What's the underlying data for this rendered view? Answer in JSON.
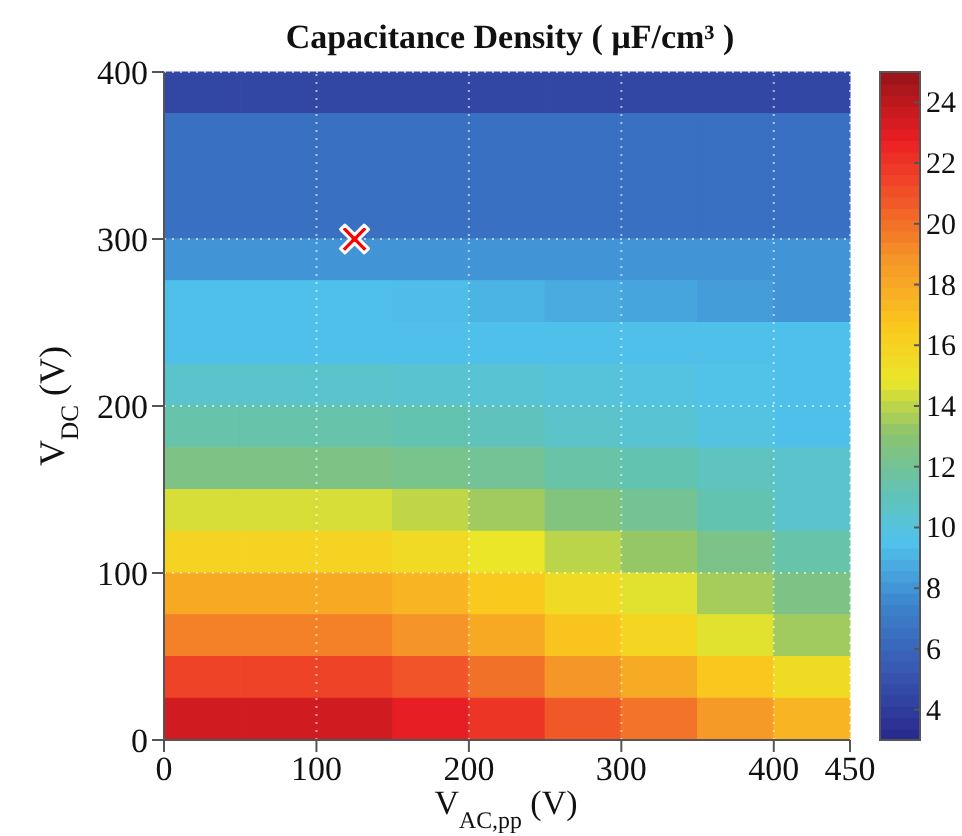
{
  "chart_data": {
    "type": "heatmap",
    "title": "Capacitance Density ( μF/cm³ )",
    "xlabel": "V$_{AC,pp}$ (V)",
    "ylabel": "V$_{DC}$ (V)",
    "x": [
      25,
      75,
      125,
      175,
      225,
      275,
      325,
      375,
      425
    ],
    "y": [
      387.5,
      362.5,
      337.5,
      312.5,
      287.5,
      262.5,
      237.5,
      212.5,
      187.5,
      162.5,
      137.5,
      112.5,
      87.5,
      62.5,
      37.5,
      12.5
    ],
    "xlim": [
      0,
      450
    ],
    "xticks": [
      0,
      100,
      200,
      300,
      400,
      450
    ],
    "ylim": [
      0,
      400
    ],
    "yticks": [
      0,
      100,
      200,
      300,
      400
    ],
    "clim": [
      3,
      25
    ],
    "cticks": [
      4,
      6,
      8,
      10,
      12,
      14,
      16,
      18,
      20,
      22,
      24
    ],
    "grid": true,
    "cells": [
      [
        4.5,
        4.5,
        4.5,
        4.5,
        4.5,
        4.5,
        4.5,
        4.5,
        4.5
      ],
      [
        6.5,
        6.5,
        6.5,
        6.5,
        6.5,
        6.5,
        6.5,
        6.5,
        6.5
      ],
      [
        6.5,
        6.5,
        6.5,
        6.5,
        6.5,
        6.5,
        6.5,
        6.5,
        6.5
      ],
      [
        6.5,
        6.5,
        6.5,
        6.5,
        6.5,
        6.5,
        6.5,
        6.5,
        6.5
      ],
      [
        8,
        8,
        8,
        8,
        8,
        8,
        8,
        8,
        8
      ],
      [
        9.5,
        9.5,
        9.5,
        9.4,
        9.1,
        8.8,
        8.6,
        8.3,
        8
      ],
      [
        9.5,
        9.5,
        9.5,
        9.5,
        9.5,
        9.5,
        9.5,
        9.5,
        9.5
      ],
      [
        10.5,
        10.5,
        10.5,
        10.4,
        10.3,
        10.1,
        9.9,
        9.7,
        9.5
      ],
      [
        11.5,
        11.5,
        11.5,
        11.3,
        11,
        10.6,
        10.3,
        9.9,
        9.5
      ],
      [
        12.5,
        12.5,
        12.5,
        12.3,
        12,
        11.6,
        11.3,
        10.9,
        10.5
      ],
      [
        14.5,
        14.5,
        14.5,
        14.1,
        13.5,
        12.7,
        12.1,
        11.3,
        10.5
      ],
      [
        16,
        16,
        16,
        15.6,
        14.9,
        14,
        13.3,
        12.4,
        11.5
      ],
      [
        18,
        18,
        18,
        17.5,
        16.6,
        15.5,
        14.7,
        13.6,
        12.5
      ],
      [
        19.5,
        19.5,
        19.5,
        18.9,
        18,
        16.8,
        15.9,
        14.7,
        13.5
      ],
      [
        21.5,
        21.5,
        21.5,
        20.9,
        20,
        18.8,
        17.9,
        16.7,
        15.5
      ],
      [
        23.5,
        23.5,
        23.5,
        22.9,
        22,
        20.8,
        19.9,
        18.7,
        17.5
      ]
    ],
    "series": [
      {
        "type": "scatter",
        "x": [
          125
        ],
        "values": [
          300
        ],
        "color": "#ff0000",
        "marker": "cross"
      }
    ]
  }
}
